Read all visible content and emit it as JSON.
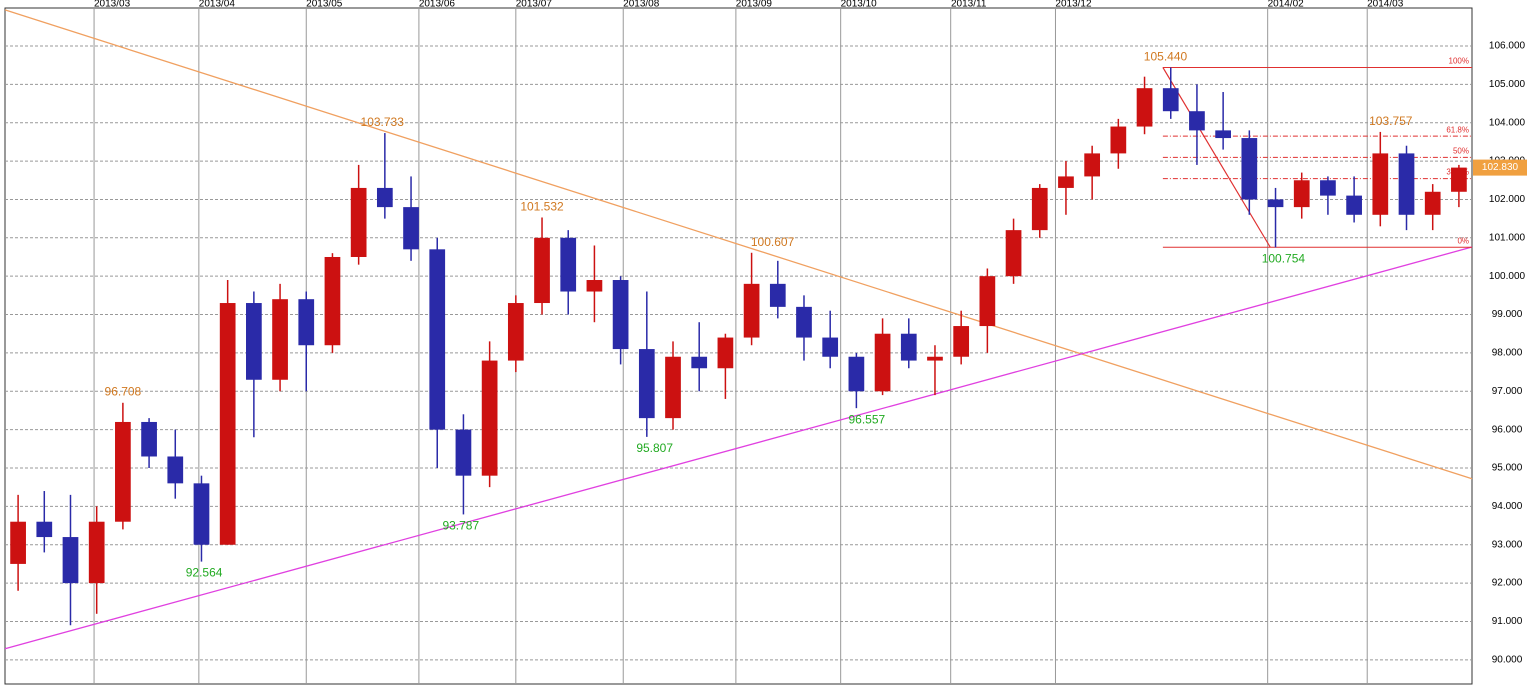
{
  "chart_data": {
    "type": "candlestick",
    "open": [
      92.5,
      93.6,
      93.2,
      92.0,
      93.6,
      96.2,
      95.3,
      94.6,
      93.0,
      99.3,
      97.3,
      99.4,
      98.2,
      100.5,
      102.3,
      101.8,
      100.7,
      96.0,
      94.8,
      97.8,
      99.3,
      101.0,
      99.6,
      99.9,
      98.1,
      96.3,
      97.9,
      97.6,
      98.4,
      99.8,
      99.2,
      98.4,
      97.9,
      97.0,
      98.5,
      97.8,
      97.9,
      98.7,
      100.0,
      101.2,
      102.3,
      102.6,
      103.2,
      103.9,
      104.9,
      104.3,
      103.8,
      103.6,
      102.0,
      101.8,
      102.5,
      102.1,
      101.6,
      103.2,
      101.6,
      102.2
    ],
    "high": [
      94.3,
      94.4,
      94.3,
      94.0,
      96.7,
      96.3,
      96.0,
      94.8,
      99.9,
      99.6,
      99.8,
      99.6,
      100.6,
      102.9,
      103.73,
      102.6,
      101.0,
      96.4,
      98.3,
      99.5,
      101.53,
      101.2,
      100.8,
      100.0,
      99.6,
      98.3,
      98.8,
      98.5,
      100.61,
      100.4,
      99.5,
      99.1,
      98.0,
      98.9,
      98.9,
      98.2,
      99.1,
      100.2,
      101.5,
      102.4,
      103.0,
      103.4,
      104.1,
      105.2,
      105.44,
      105.0,
      104.8,
      103.8,
      102.3,
      102.7,
      102.6,
      102.6,
      103.76,
      103.4,
      102.4,
      102.9
    ],
    "low": [
      91.8,
      92.8,
      90.9,
      91.2,
      93.4,
      95.0,
      94.2,
      92.56,
      93.0,
      95.8,
      97.0,
      97.0,
      98.0,
      100.3,
      101.5,
      100.4,
      95.0,
      93.79,
      94.5,
      97.5,
      99.0,
      99.0,
      98.8,
      97.7,
      95.81,
      96.0,
      97.0,
      96.8,
      98.2,
      98.9,
      97.8,
      97.6,
      96.56,
      96.9,
      97.6,
      96.9,
      97.7,
      98.0,
      99.8,
      101.0,
      101.6,
      102.0,
      102.8,
      103.7,
      104.1,
      102.9,
      103.3,
      101.6,
      100.75,
      101.5,
      101.6,
      101.4,
      101.3,
      101.2,
      101.2,
      101.8
    ],
    "close": [
      93.6,
      93.2,
      92.0,
      93.6,
      96.2,
      95.3,
      94.6,
      93.0,
      99.3,
      97.3,
      99.4,
      98.2,
      100.5,
      102.3,
      101.8,
      100.7,
      96.0,
      94.8,
      97.8,
      99.3,
      101.0,
      99.6,
      99.9,
      98.1,
      96.3,
      97.9,
      97.6,
      98.4,
      99.8,
      99.2,
      98.4,
      97.9,
      97.0,
      98.5,
      97.8,
      97.9,
      98.7,
      100.0,
      101.2,
      102.3,
      102.6,
      103.2,
      103.9,
      104.9,
      104.3,
      103.8,
      103.6,
      102.0,
      101.8,
      102.5,
      102.1,
      101.6,
      103.2,
      101.6,
      102.2,
      102.83
    ],
    "up_color": "#cc1111",
    "down_color": "#2a2aa8",
    "xlim": [
      0,
      56
    ],
    "xticks": [
      {
        "value": 3.4,
        "label": "2013/03"
      },
      {
        "value": 7.4,
        "label": "2013/04"
      },
      {
        "value": 11.5,
        "label": "2013/05"
      },
      {
        "value": 15.8,
        "label": "2013/06"
      },
      {
        "value": 19.5,
        "label": "2013/07"
      },
      {
        "value": 23.6,
        "label": "2013/08"
      },
      {
        "value": 27.9,
        "label": "2013/09"
      },
      {
        "value": 31.9,
        "label": "2013/10"
      },
      {
        "value": 36.1,
        "label": "2013/11"
      },
      {
        "value": 40.1,
        "label": "2013/12"
      },
      {
        "value": 48.2,
        "label": "2014/02"
      },
      {
        "value": 52.0,
        "label": "2014/03"
      }
    ],
    "ylim": [
      89.37,
      106.99
    ],
    "yticks": [
      {
        "value": 90,
        "label": "90.000"
      },
      {
        "value": 91,
        "label": "91.000"
      },
      {
        "value": 92,
        "label": "92.000"
      },
      {
        "value": 93,
        "label": "93.000"
      },
      {
        "value": 94,
        "label": "94.000"
      },
      {
        "value": 95,
        "label": "95.000"
      },
      {
        "value": 96,
        "label": "96.000"
      },
      {
        "value": 97,
        "label": "97.000"
      },
      {
        "value": 98,
        "label": "98.000"
      },
      {
        "value": 99,
        "label": "99.000"
      },
      {
        "value": 100,
        "label": "100.000"
      },
      {
        "value": 101,
        "label": "101.000"
      },
      {
        "value": 102,
        "label": "102.000"
      },
      {
        "value": 103,
        "label": "103.000"
      },
      {
        "value": 104,
        "label": "104.000"
      },
      {
        "value": 105,
        "label": "105.000"
      },
      {
        "value": 106,
        "label": "106.000"
      }
    ],
    "grid": true,
    "annotations": [
      {
        "label": "96.708",
        "value": 96.708,
        "x": 4.5,
        "pos": "above",
        "color": "#d07820"
      },
      {
        "label": "92.564",
        "value": 92.564,
        "x": 7.6,
        "pos": "below",
        "color": "#22aa22"
      },
      {
        "label": "103.733",
        "value": 103.733,
        "x": 14.4,
        "pos": "above",
        "color": "#d07820"
      },
      {
        "label": "93.787",
        "value": 93.787,
        "x": 17.4,
        "pos": "below",
        "color": "#22aa22"
      },
      {
        "label": "101.532",
        "value": 101.532,
        "x": 20.5,
        "pos": "above",
        "color": "#d07820"
      },
      {
        "label": "95.807",
        "value": 95.807,
        "x": 24.8,
        "pos": "below",
        "color": "#22aa22"
      },
      {
        "label": "100.607",
        "value": 100.607,
        "x": 29.3,
        "pos": "above",
        "color": "#d07820"
      },
      {
        "label": "96.557",
        "value": 96.557,
        "x": 32.9,
        "pos": "below",
        "color": "#22aa22"
      },
      {
        "label": "105.440",
        "value": 105.44,
        "x": 44.3,
        "pos": "above",
        "color": "#d07820"
      },
      {
        "label": "100.754",
        "value": 100.754,
        "x": 48.8,
        "pos": "below",
        "color": "#22aa22"
      },
      {
        "label": "103.757",
        "value": 103.757,
        "x": 52.9,
        "pos": "above",
        "color": "#d07820"
      }
    ],
    "trendlines": [
      {
        "color": "#f0a060",
        "x": [
          0,
          56
        ],
        "y": [
          106.94,
          94.72
        ]
      },
      {
        "color": "#e040e0",
        "x": [
          0,
          56
        ],
        "y": [
          90.29,
          100.76
        ]
      }
    ],
    "fib": {
      "color": "#e03030",
      "x_start": 44.2,
      "diag_x": [
        44.2,
        48.3
      ],
      "levels": [
        {
          "label": "100%",
          "value": 105.44
        },
        {
          "label": "61.8%",
          "value": 103.65
        },
        {
          "label": "50%",
          "value": 103.097
        },
        {
          "label": "38.2%",
          "value": 102.544
        },
        {
          "label": "0%",
          "value": 100.754
        }
      ]
    },
    "last": {
      "label": "102.830",
      "value": 102.83,
      "color": "#f0a040"
    }
  }
}
